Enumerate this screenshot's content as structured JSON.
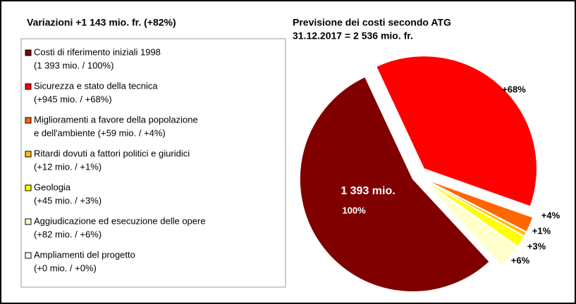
{
  "chart_data": {
    "type": "pie",
    "title": "Variazioni +1 143 mio. fr. (+82%)",
    "subtitle": [
      "Previsione dei costi secondo ATG",
      "31.12.2017 = 2 536 mio. fr."
    ],
    "categories": [
      [
        "Costi di riferimento iniziali 1998",
        "(1 393 mio. / 100%)"
      ],
      [
        "Sicurezza e stato della tecnica",
        "(+945 mio. / +68%)"
      ],
      [
        "Miglioramenti a favore della popolazione",
        "e dell'ambiente (+59 mio. / +4%)"
      ],
      [
        "Ritardi dovuti a fattori politici e giuridici",
        "(+12 mio. / +1%)"
      ],
      [
        "Geologia",
        "(+45 mio. / +3%)"
      ],
      [
        "Aggiudicazione ed esecuzione delle opere",
        "(+82 mio. / +6%)"
      ],
      [
        "Ampliamenti del progetto",
        "(+0 mio. / +0%)"
      ]
    ],
    "values": [
      100,
      68,
      4,
      1,
      3,
      6,
      0
    ],
    "value_labels": [
      "100%",
      "+68%",
      "+4%",
      "+1%",
      "+3%",
      "+6%",
      null
    ],
    "annotation": "1 393 mio.",
    "colors": [
      "#800000",
      "#ff0000",
      "#ff6600",
      "#ffc000",
      "#ffff00",
      "#ffffcc",
      "#ffffff"
    ]
  }
}
